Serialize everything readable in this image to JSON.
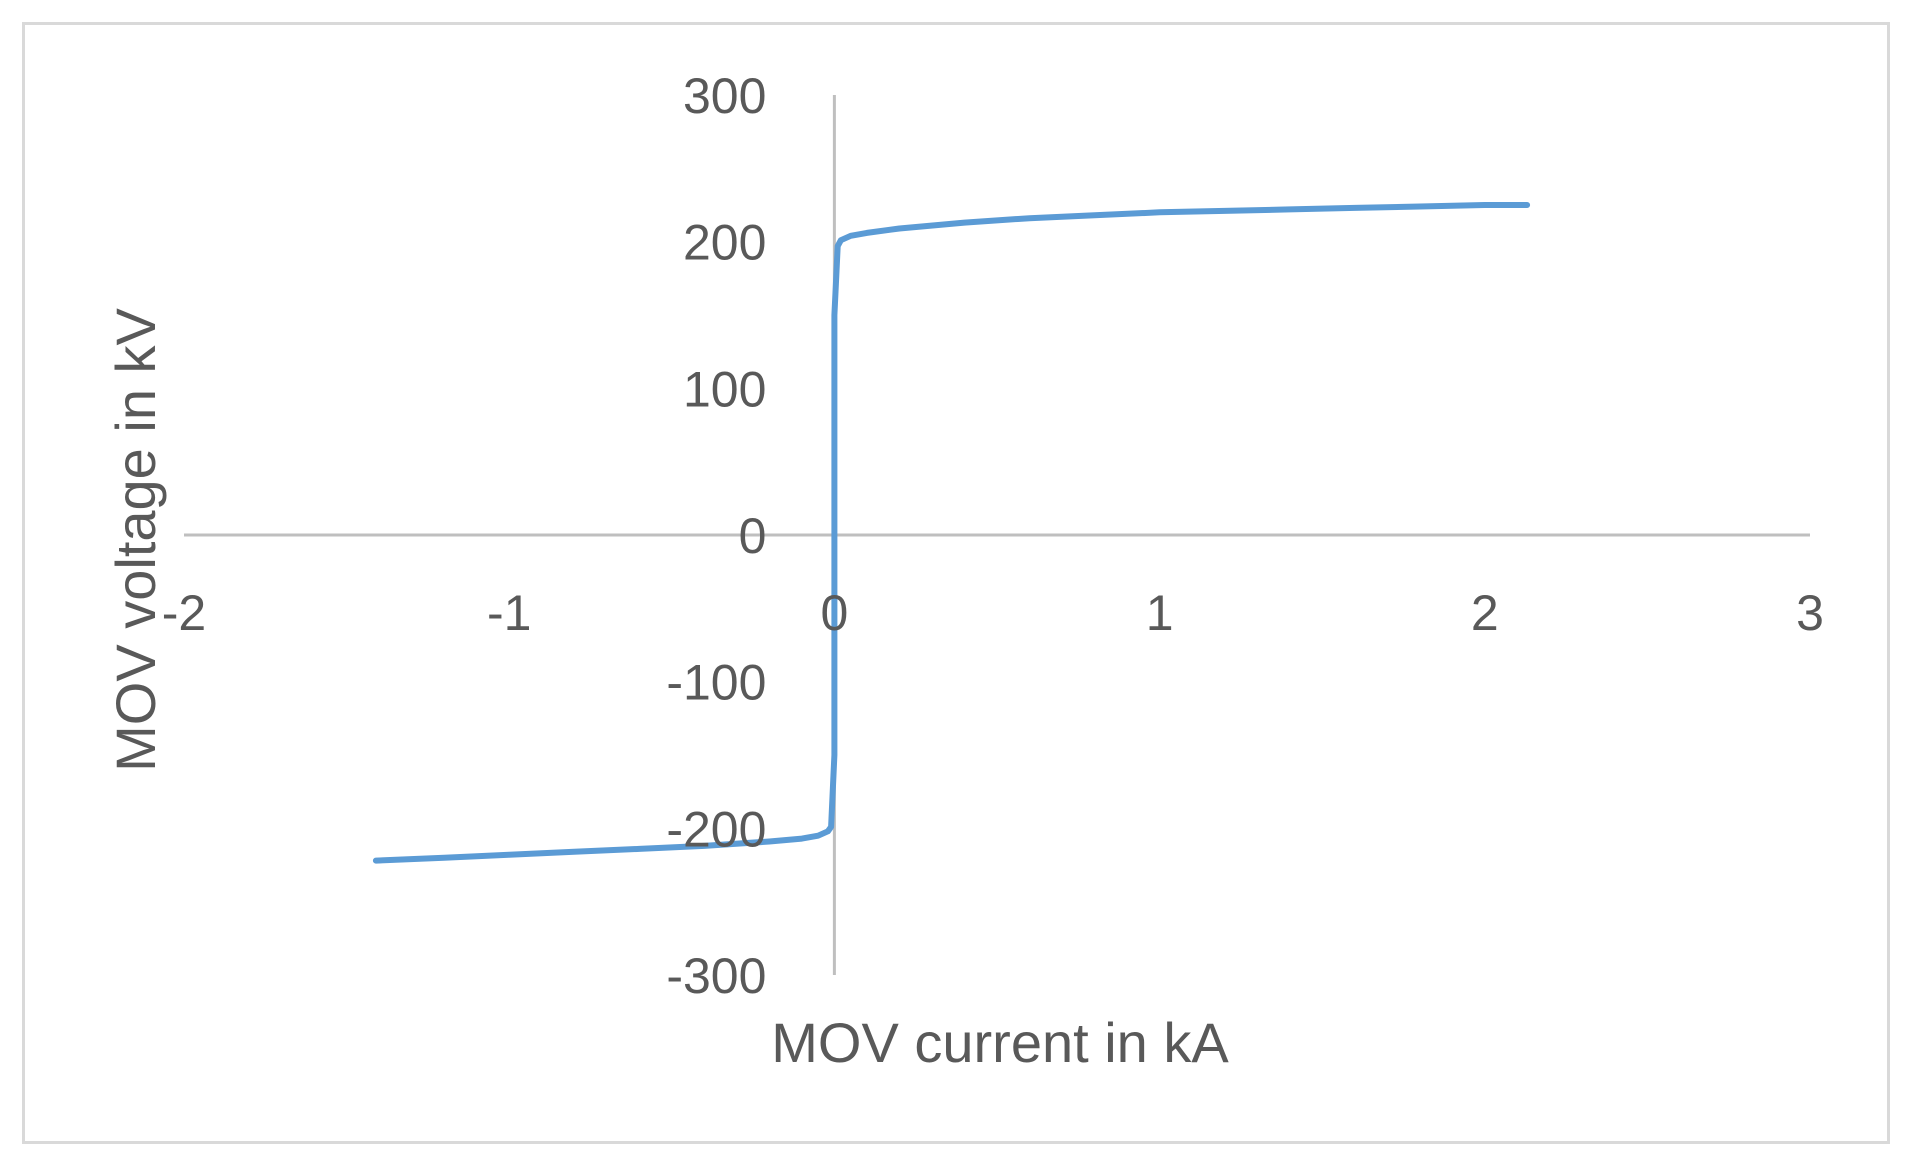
{
  "chart_data": {
    "type": "line",
    "title": "",
    "xlabel": "MOV current in kA",
    "ylabel": "MOV voltage in kV",
    "xlim": [
      -2,
      3
    ],
    "ylim": [
      -300,
      300
    ],
    "x_ticks": [
      -2,
      -1,
      0,
      1,
      2,
      3
    ],
    "y_ticks": [
      -300,
      -200,
      -100,
      0,
      100,
      200,
      300
    ],
    "x_tick_labels": [
      "-2",
      "-1",
      "0",
      "1",
      "2",
      "3"
    ],
    "y_tick_labels": [
      "-300",
      "-200",
      "-100",
      "0",
      "100",
      "200",
      "300"
    ],
    "grid": false,
    "legend": "none",
    "line_color": "#5b9bd5",
    "axis_color": "#bfbfbf",
    "series": [
      {
        "x": [
          -1.41,
          -1.2,
          -1.0,
          -0.8,
          -0.6,
          -0.4,
          -0.2,
          -0.1,
          -0.05,
          -0.02,
          -0.01,
          0,
          0,
          0,
          0,
          0,
          0.01,
          0.02,
          0.05,
          0.1,
          0.2,
          0.4,
          0.6,
          0.8,
          1.0,
          1.2,
          1.4,
          1.6,
          1.8,
          2.0,
          2.13
        ],
        "y": [
          -222,
          -220,
          -218,
          -216,
          -214,
          -212,
          -209,
          -207,
          -205,
          -202,
          -199,
          -150,
          -50,
          0,
          50,
          150,
          197,
          201,
          204,
          206,
          209,
          213,
          216,
          218,
          220,
          221,
          222,
          223,
          224,
          225,
          225
        ]
      }
    ]
  }
}
